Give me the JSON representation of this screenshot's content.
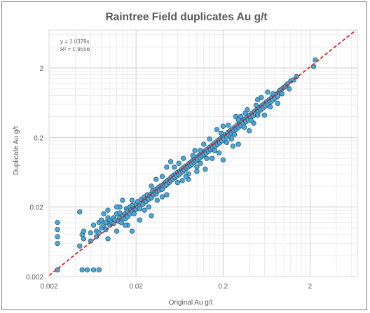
{
  "chart_data": {
    "type": "scatter",
    "title": "Raintree Field duplicates Au g/t",
    "xlabel": "Original Au g/t",
    "ylabel": "Duplicate Au g/t",
    "x_scale": "log",
    "y_scale": "log",
    "xlim": [
      0.002,
      7
    ],
    "ylim": [
      0.002,
      7
    ],
    "x_ticks": [
      0.002,
      0.02,
      0.2,
      2
    ],
    "x_tick_labels": [
      "0.002",
      "0.02",
      "0.2",
      "2"
    ],
    "y_ticks": [
      0.002,
      0.02,
      0.2,
      2
    ],
    "y_tick_labels": [
      "0.002",
      "0.02",
      "0.2",
      "2"
    ],
    "grid": true,
    "trendline": {
      "equation_text": "y = 1.0379x",
      "r2_text": "R² = 0.9556",
      "slope": 1.0379,
      "color": "#e02020",
      "style": "dashed"
    },
    "marker_color": "#4aa8d8",
    "marker_edge": "#1f4e6b",
    "points": [
      [
        0.0025,
        0.0025
      ],
      [
        0.0025,
        0.006
      ],
      [
        0.0025,
        0.0075
      ],
      [
        0.0025,
        0.0095
      ],
      [
        0.0025,
        0.012
      ],
      [
        0.0048,
        0.0025
      ],
      [
        0.0055,
        0.0025
      ],
      [
        0.0065,
        0.0025
      ],
      [
        0.0075,
        0.0025
      ],
      [
        0.0045,
        0.0055
      ],
      [
        0.005,
        0.007
      ],
      [
        0.0048,
        0.008
      ],
      [
        0.005,
        0.009
      ],
      [
        0.0045,
        0.017
      ],
      [
        0.006,
        0.0065
      ],
      [
        0.006,
        0.0085
      ],
      [
        0.0065,
        0.011
      ],
      [
        0.007,
        0.009
      ],
      [
        0.007,
        0.0075
      ],
      [
        0.0075,
        0.012
      ],
      [
        0.0075,
        0.0085
      ],
      [
        0.008,
        0.01
      ],
      [
        0.008,
        0.013
      ],
      [
        0.0085,
        0.011
      ],
      [
        0.009,
        0.0095
      ],
      [
        0.009,
        0.012
      ],
      [
        0.0095,
        0.014
      ],
      [
        0.01,
        0.011
      ],
      [
        0.01,
        0.013
      ],
      [
        0.0095,
        0.007
      ],
      [
        0.0105,
        0.012
      ],
      [
        0.011,
        0.0115
      ],
      [
        0.011,
        0.014
      ],
      [
        0.0115,
        0.013
      ],
      [
        0.012,
        0.009
      ],
      [
        0.012,
        0.016
      ],
      [
        0.0125,
        0.0125
      ],
      [
        0.013,
        0.014
      ],
      [
        0.013,
        0.0165
      ],
      [
        0.0135,
        0.012
      ],
      [
        0.014,
        0.015
      ],
      [
        0.014,
        0.0135
      ],
      [
        0.015,
        0.016
      ],
      [
        0.015,
        0.0135
      ],
      [
        0.0155,
        0.019
      ],
      [
        0.016,
        0.0145
      ],
      [
        0.016,
        0.0175
      ],
      [
        0.017,
        0.016
      ],
      [
        0.017,
        0.02
      ],
      [
        0.0175,
        0.018
      ],
      [
        0.018,
        0.017
      ],
      [
        0.018,
        0.021
      ],
      [
        0.019,
        0.019
      ],
      [
        0.019,
        0.016
      ],
      [
        0.02,
        0.022
      ],
      [
        0.02,
        0.0185
      ],
      [
        0.021,
        0.02
      ],
      [
        0.021,
        0.024
      ],
      [
        0.022,
        0.021
      ],
      [
        0.022,
        0.019
      ],
      [
        0.023,
        0.023
      ],
      [
        0.023,
        0.026
      ],
      [
        0.024,
        0.022
      ],
      [
        0.025,
        0.025
      ],
      [
        0.025,
        0.028
      ],
      [
        0.026,
        0.024
      ],
      [
        0.027,
        0.027
      ],
      [
        0.027,
        0.03
      ],
      [
        0.028,
        0.026
      ],
      [
        0.029,
        0.029
      ],
      [
        0.03,
        0.031
      ],
      [
        0.03,
        0.027
      ],
      [
        0.031,
        0.034
      ],
      [
        0.032,
        0.03
      ],
      [
        0.033,
        0.033
      ],
      [
        0.034,
        0.036
      ],
      [
        0.034,
        0.031
      ],
      [
        0.035,
        0.034
      ],
      [
        0.036,
        0.038
      ],
      [
        0.037,
        0.035
      ],
      [
        0.038,
        0.04
      ],
      [
        0.039,
        0.037
      ],
      [
        0.04,
        0.041
      ],
      [
        0.04,
        0.036
      ],
      [
        0.042,
        0.043
      ],
      [
        0.043,
        0.04
      ],
      [
        0.044,
        0.046
      ],
      [
        0.045,
        0.042
      ],
      [
        0.046,
        0.048
      ],
      [
        0.048,
        0.045
      ],
      [
        0.049,
        0.051
      ],
      [
        0.05,
        0.048
      ],
      [
        0.051,
        0.054
      ],
      [
        0.053,
        0.05
      ],
      [
        0.054,
        0.057
      ],
      [
        0.056,
        0.053
      ],
      [
        0.057,
        0.06
      ],
      [
        0.059,
        0.056
      ],
      [
        0.06,
        0.063
      ],
      [
        0.062,
        0.058
      ],
      [
        0.064,
        0.066
      ],
      [
        0.065,
        0.062
      ],
      [
        0.067,
        0.07
      ],
      [
        0.069,
        0.065
      ],
      [
        0.07,
        0.073
      ],
      [
        0.072,
        0.068
      ],
      [
        0.074,
        0.077
      ],
      [
        0.076,
        0.072
      ],
      [
        0.078,
        0.08
      ],
      [
        0.08,
        0.076
      ],
      [
        0.082,
        0.085
      ],
      [
        0.084,
        0.079
      ],
      [
        0.086,
        0.089
      ],
      [
        0.088,
        0.083
      ],
      [
        0.09,
        0.094
      ],
      [
        0.093,
        0.088
      ],
      [
        0.095,
        0.098
      ],
      [
        0.098,
        0.092
      ],
      [
        0.1,
        0.104
      ],
      [
        0.103,
        0.097
      ],
      [
        0.106,
        0.11
      ],
      [
        0.109,
        0.102
      ],
      [
        0.112,
        0.116
      ],
      [
        0.115,
        0.108
      ],
      [
        0.118,
        0.122
      ],
      [
        0.121,
        0.114
      ],
      [
        0.125,
        0.129
      ],
      [
        0.128,
        0.12
      ],
      [
        0.132,
        0.136
      ],
      [
        0.136,
        0.127
      ],
      [
        0.14,
        0.145
      ],
      [
        0.144,
        0.134
      ],
      [
        0.148,
        0.153
      ],
      [
        0.152,
        0.142
      ],
      [
        0.157,
        0.162
      ],
      [
        0.162,
        0.15
      ],
      [
        0.167,
        0.172
      ],
      [
        0.172,
        0.159
      ],
      [
        0.177,
        0.183
      ],
      [
        0.183,
        0.168
      ],
      [
        0.188,
        0.195
      ],
      [
        0.194,
        0.179
      ],
      [
        0.2,
        0.207
      ],
      [
        0.206,
        0.19
      ],
      [
        0.213,
        0.22
      ],
      [
        0.22,
        0.203
      ],
      [
        0.227,
        0.234
      ],
      [
        0.234,
        0.216
      ],
      [
        0.241,
        0.25
      ],
      [
        0.249,
        0.231
      ],
      [
        0.257,
        0.266
      ],
      [
        0.265,
        0.246
      ],
      [
        0.274,
        0.283
      ],
      [
        0.283,
        0.262
      ],
      [
        0.292,
        0.302
      ],
      [
        0.301,
        0.279
      ],
      [
        0.311,
        0.322
      ],
      [
        0.321,
        0.297
      ],
      [
        0.332,
        0.343
      ],
      [
        0.343,
        0.317
      ],
      [
        0.354,
        0.366
      ],
      [
        0.366,
        0.338
      ],
      [
        0.378,
        0.39
      ],
      [
        0.39,
        0.36
      ],
      [
        0.403,
        0.416
      ],
      [
        0.416,
        0.384
      ],
      [
        0.43,
        0.444
      ],
      [
        0.444,
        0.41
      ],
      [
        0.459,
        0.473
      ],
      [
        0.474,
        0.437
      ],
      [
        0.49,
        0.505
      ],
      [
        0.506,
        0.467
      ],
      [
        0.523,
        0.538
      ],
      [
        0.54,
        0.498
      ],
      [
        0.558,
        0.574
      ],
      [
        0.576,
        0.532
      ],
      [
        0.595,
        0.612
      ],
      [
        0.615,
        0.567
      ],
      [
        0.635,
        0.654
      ],
      [
        0.656,
        0.605
      ],
      [
        0.678,
        0.697
      ],
      [
        0.7,
        0.646
      ],
      [
        0.723,
        0.744
      ],
      [
        0.747,
        0.689
      ],
      [
        0.772,
        0.794
      ],
      [
        0.797,
        0.735
      ],
      [
        0.823,
        0.847
      ],
      [
        0.85,
        0.784
      ],
      [
        0.878,
        0.903
      ],
      [
        0.9,
        0.95
      ],
      [
        0.95,
        1.0
      ],
      [
        1.0,
        1.05
      ],
      [
        1.05,
        1.1
      ],
      [
        1.1,
        1.18
      ],
      [
        1.2,
        1.3
      ],
      [
        1.3,
        1.35
      ],
      [
        1.4,
        1.5
      ],
      [
        2.2,
        2.1
      ],
      [
        2.3,
        2.6
      ],
      [
        0.65,
        0.9
      ],
      [
        0.55,
        0.75
      ],
      [
        0.05,
        0.09
      ],
      [
        0.045,
        0.075
      ],
      [
        0.12,
        0.16
      ],
      [
        0.07,
        0.1
      ],
      [
        0.25,
        0.19
      ],
      [
        0.3,
        0.16
      ],
      [
        0.22,
        0.17
      ],
      [
        0.26,
        0.15
      ],
      [
        0.4,
        0.25
      ],
      [
        0.45,
        0.32
      ],
      [
        0.6,
        0.42
      ],
      [
        0.18,
        0.12
      ],
      [
        0.15,
        0.1
      ],
      [
        0.1,
        0.075
      ],
      [
        0.08,
        0.06
      ],
      [
        0.06,
        0.045
      ],
      [
        0.035,
        0.025
      ],
      [
        0.028,
        0.02
      ],
      [
        0.016,
        0.011
      ],
      [
        0.018,
        0.025
      ],
      [
        0.03,
        0.04
      ],
      [
        0.055,
        0.075
      ],
      [
        0.09,
        0.11
      ],
      [
        0.11,
        0.13
      ],
      [
        0.125,
        0.07
      ],
      [
        0.2,
        0.095
      ],
      [
        0.1,
        0.065
      ],
      [
        0.08,
        0.05
      ],
      [
        0.04,
        0.055
      ],
      [
        0.013,
        0.02
      ],
      [
        0.012,
        0.02
      ],
      [
        0.0095,
        0.018
      ],
      [
        0.0085,
        0.016
      ],
      [
        0.014,
        0.025
      ],
      [
        0.025,
        0.018
      ],
      [
        0.045,
        0.03
      ],
      [
        0.17,
        0.26
      ],
      [
        0.35,
        0.28
      ],
      [
        0.5,
        0.42
      ],
      [
        0.7,
        0.55
      ],
      [
        0.85,
        0.62
      ],
      [
        0.38,
        0.5
      ],
      [
        0.28,
        0.4
      ],
      [
        0.2,
        0.29
      ],
      [
        0.062,
        0.085
      ],
      [
        0.075,
        0.055
      ],
      [
        0.095,
        0.13
      ],
      [
        0.14,
        0.19
      ],
      [
        0.16,
        0.13
      ],
      [
        0.19,
        0.23
      ],
      [
        0.23,
        0.3
      ],
      [
        0.27,
        0.22
      ],
      [
        0.32,
        0.4
      ],
      [
        0.42,
        0.35
      ],
      [
        0.48,
        0.58
      ],
      [
        0.015,
        0.011
      ],
      [
        0.022,
        0.013
      ],
      [
        0.03,
        0.015
      ],
      [
        0.018,
        0.009
      ],
      [
        0.04,
        0.028
      ],
      [
        0.068,
        0.048
      ],
      [
        0.11,
        0.085
      ],
      [
        0.13,
        0.1
      ],
      [
        0.5,
        0.7
      ],
      [
        0.3,
        0.36
      ],
      [
        0.36,
        0.45
      ],
      [
        0.75,
        0.85
      ],
      [
        0.95,
        0.85
      ],
      [
        1.15,
        1.0
      ],
      [
        0.034,
        0.05
      ]
    ]
  }
}
